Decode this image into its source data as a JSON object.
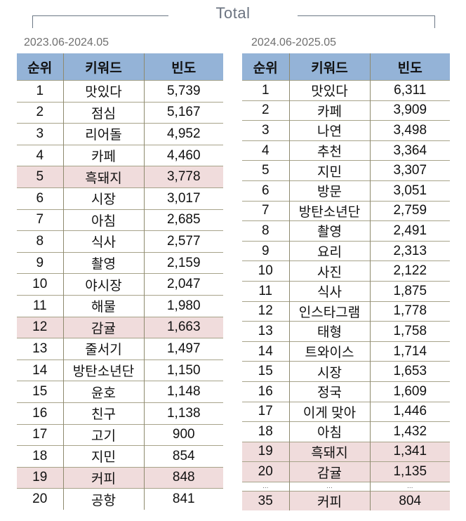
{
  "title": "Total",
  "colors": {
    "header_bg": "#94b3d7",
    "highlight_bg": "#f0dcdc",
    "title_text": "#6b7380"
  },
  "columns": [
    "순위",
    "키워드",
    "빈도"
  ],
  "tables": [
    {
      "period": "2023.06-2024.05",
      "rows": [
        {
          "rank": "1",
          "keyword": "맛있다",
          "freq": "5,739",
          "highlight": false
        },
        {
          "rank": "2",
          "keyword": "점심",
          "freq": "5,167",
          "highlight": false
        },
        {
          "rank": "3",
          "keyword": "리어돌",
          "freq": "4,952",
          "highlight": false
        },
        {
          "rank": "4",
          "keyword": "카페",
          "freq": "4,460",
          "highlight": false
        },
        {
          "rank": "5",
          "keyword": "흑돼지",
          "freq": "3,778",
          "highlight": true
        },
        {
          "rank": "6",
          "keyword": "시장",
          "freq": "3,017",
          "highlight": false
        },
        {
          "rank": "7",
          "keyword": "아침",
          "freq": "2,685",
          "highlight": false
        },
        {
          "rank": "8",
          "keyword": "식사",
          "freq": "2,577",
          "highlight": false
        },
        {
          "rank": "9",
          "keyword": "촬영",
          "freq": "2,159",
          "highlight": false
        },
        {
          "rank": "10",
          "keyword": "야시장",
          "freq": "2,047",
          "highlight": false
        },
        {
          "rank": "11",
          "keyword": "해물",
          "freq": "1,980",
          "highlight": false
        },
        {
          "rank": "12",
          "keyword": "감귤",
          "freq": "1,663",
          "highlight": true
        },
        {
          "rank": "13",
          "keyword": "줄서기",
          "freq": "1,497",
          "highlight": false
        },
        {
          "rank": "14",
          "keyword": "방탄소년단",
          "freq": "1,150",
          "highlight": false
        },
        {
          "rank": "15",
          "keyword": "윤호",
          "freq": "1,148",
          "highlight": false
        },
        {
          "rank": "16",
          "keyword": "친구",
          "freq": "1,138",
          "highlight": false
        },
        {
          "rank": "17",
          "keyword": "고기",
          "freq": "900",
          "highlight": false
        },
        {
          "rank": "18",
          "keyword": "지민",
          "freq": "854",
          "highlight": false
        },
        {
          "rank": "19",
          "keyword": "커피",
          "freq": "848",
          "highlight": true
        },
        {
          "rank": "20",
          "keyword": "공항",
          "freq": "841",
          "highlight": false
        }
      ]
    },
    {
      "period": "2024.06-2025.05",
      "rows": [
        {
          "rank": "1",
          "keyword": "맛있다",
          "freq": "6,311",
          "highlight": false
        },
        {
          "rank": "2",
          "keyword": "카페",
          "freq": "3,909",
          "highlight": false
        },
        {
          "rank": "3",
          "keyword": "나연",
          "freq": "3,498",
          "highlight": false
        },
        {
          "rank": "4",
          "keyword": "추천",
          "freq": "3,364",
          "highlight": false
        },
        {
          "rank": "5",
          "keyword": "지민",
          "freq": "3,307",
          "highlight": false
        },
        {
          "rank": "6",
          "keyword": "방문",
          "freq": "3,051",
          "highlight": false
        },
        {
          "rank": "7",
          "keyword": "방탄소년단",
          "freq": "2,759",
          "highlight": false
        },
        {
          "rank": "8",
          "keyword": "촬영",
          "freq": "2,491",
          "highlight": false
        },
        {
          "rank": "9",
          "keyword": "요리",
          "freq": "2,313",
          "highlight": false
        },
        {
          "rank": "10",
          "keyword": "사진",
          "freq": "2,122",
          "highlight": false
        },
        {
          "rank": "11",
          "keyword": "식사",
          "freq": "1,875",
          "highlight": false
        },
        {
          "rank": "12",
          "keyword": "인스타그램",
          "freq": "1,778",
          "highlight": false
        },
        {
          "rank": "13",
          "keyword": "태형",
          "freq": "1,758",
          "highlight": false
        },
        {
          "rank": "14",
          "keyword": "트와이스",
          "freq": "1,714",
          "highlight": false
        },
        {
          "rank": "15",
          "keyword": "시장",
          "freq": "1,653",
          "highlight": false
        },
        {
          "rank": "16",
          "keyword": "정국",
          "freq": "1,609",
          "highlight": false
        },
        {
          "rank": "17",
          "keyword": "이게 맞아",
          "freq": "1,446",
          "highlight": false
        },
        {
          "rank": "18",
          "keyword": "아침",
          "freq": "1,432",
          "highlight": false
        },
        {
          "rank": "19",
          "keyword": "흑돼지",
          "freq": "1,341",
          "highlight": true
        },
        {
          "rank": "20",
          "keyword": "감귤",
          "freq": "1,135",
          "highlight": true
        },
        {
          "rank": "…",
          "keyword": "…",
          "freq": "…",
          "highlight": false,
          "ellipsis": true
        },
        {
          "rank": "35",
          "keyword": "커피",
          "freq": "804",
          "highlight": true
        }
      ]
    }
  ]
}
